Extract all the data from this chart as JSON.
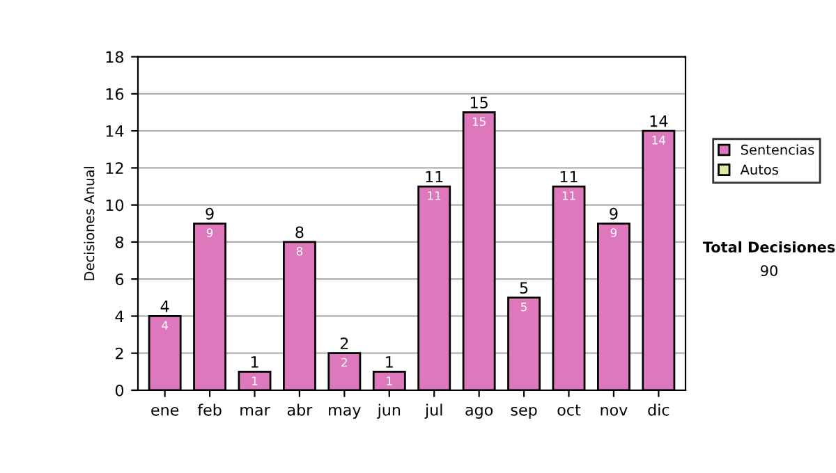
{
  "chart_data": {
    "type": "bar",
    "stacked": true,
    "ylabel": "Decisiones Anual",
    "categories": [
      "ene",
      "feb",
      "mar",
      "abr",
      "may",
      "jun",
      "jul",
      "ago",
      "sep",
      "oct",
      "nov",
      "dic"
    ],
    "series": [
      {
        "name": "Sentencias",
        "color": "#de78bd",
        "values": [
          4,
          9,
          1,
          8,
          2,
          1,
          11,
          15,
          5,
          11,
          9,
          14
        ],
        "value_labels": [
          "4",
          "9",
          "1",
          "8",
          "2",
          "1",
          "11",
          "15",
          "5",
          "11",
          "9",
          "14"
        ]
      },
      {
        "name": "Autos",
        "color": "#d8eba2",
        "values": [
          null,
          null,
          null,
          null,
          null,
          null,
          null,
          null,
          null,
          null,
          null,
          null
        ]
      }
    ],
    "totals": [
      "4",
      "9",
      "1",
      "8",
      "2",
      "1",
      "11",
      "15",
      "5",
      "11",
      "9",
      "14"
    ],
    "ylim": [
      0,
      18
    ],
    "yticks": [
      0,
      2,
      4,
      6,
      8,
      10,
      12,
      14,
      16,
      18
    ],
    "grid": "y",
    "legend": "right",
    "annotations": [
      "Total Decisiones",
      "90"
    ]
  }
}
